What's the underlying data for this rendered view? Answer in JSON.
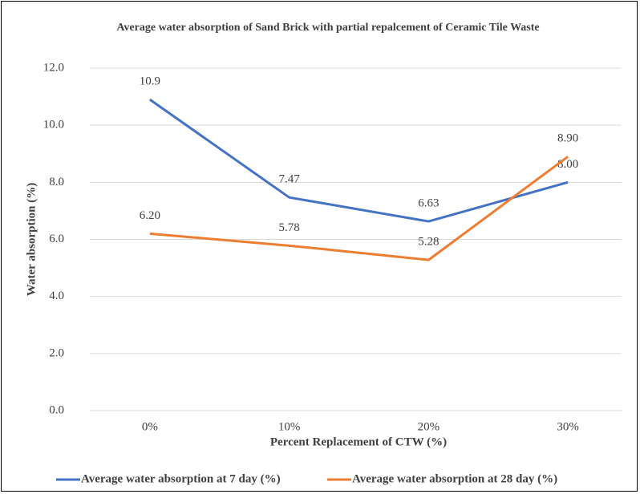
{
  "chart_data": {
    "type": "line",
    "title": "Average water absorption of Sand Brick with partial repalcement of Ceramic Tile Waste",
    "x_label": "Percent Replacement of CTW (%)",
    "y_label": "Water absorption (%)",
    "categories": [
      "0%",
      "10%",
      "20%",
      "30%"
    ],
    "series": [
      {
        "name": "Average water absorption at 7 day (%)",
        "color": "#4472c4",
        "values": [
          10.9,
          7.47,
          6.63,
          8.0
        ],
        "value_labels": [
          "10.9",
          "7.47",
          "6.63",
          "8.00"
        ]
      },
      {
        "name": "Average water absorption at 28 day (%)",
        "color": "#ed7d31",
        "values": [
          6.2,
          5.78,
          5.28,
          8.9
        ],
        "value_labels": [
          "6.20",
          "5.78",
          "5.28",
          "8.90"
        ]
      }
    ],
    "ylim": [
      0,
      12
    ],
    "yticks": [
      {
        "value": 0,
        "label": "0.0"
      },
      {
        "value": 2,
        "label": "2.0"
      },
      {
        "value": 4,
        "label": "4.0"
      },
      {
        "value": 6,
        "label": "6.0"
      },
      {
        "value": 8,
        "label": "8.0"
      },
      {
        "value": 10,
        "label": "10.0"
      },
      {
        "value": 12,
        "label": "12.0"
      }
    ],
    "grid": true,
    "legend": "bottom"
  }
}
